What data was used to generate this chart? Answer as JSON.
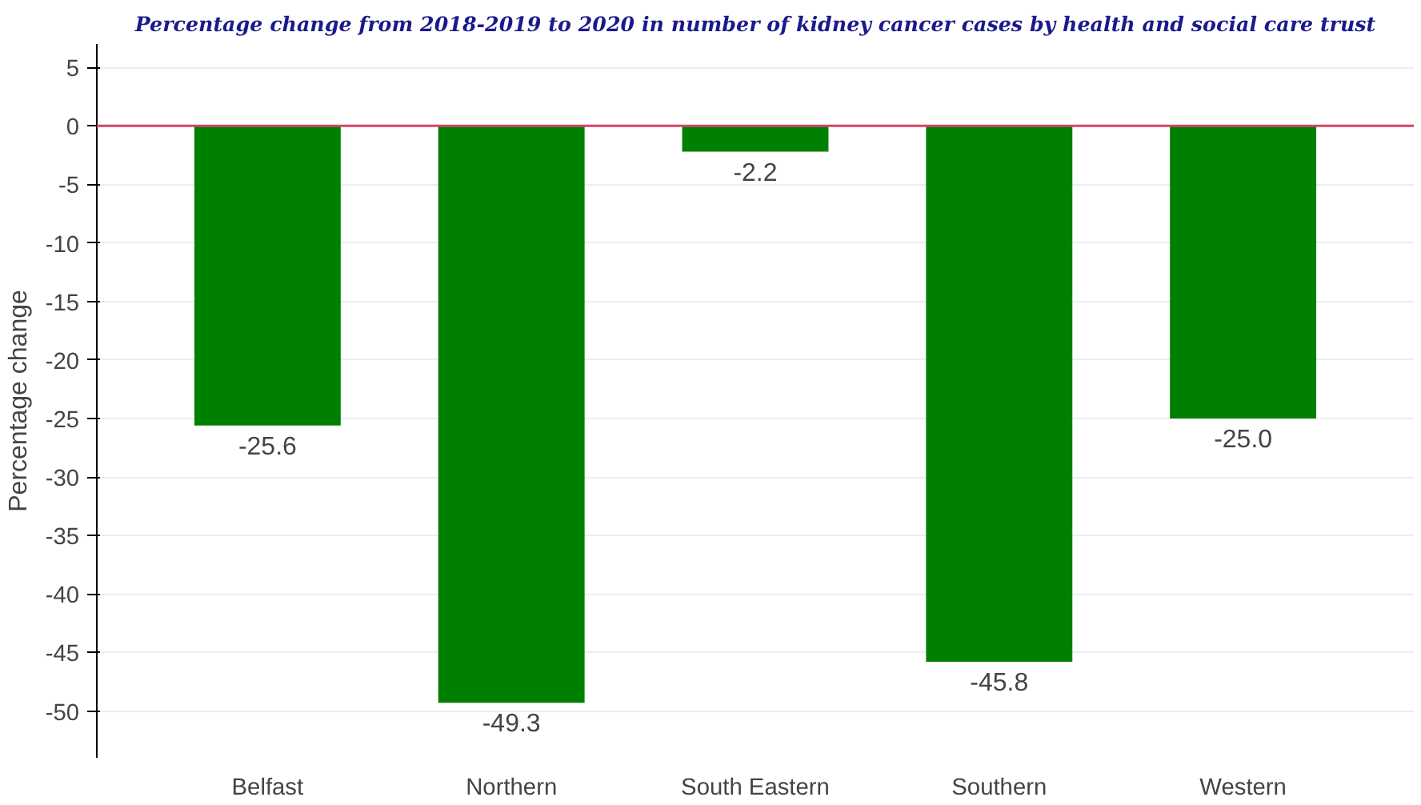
{
  "chart_data": {
    "type": "bar",
    "title": "Percentage change from 2018-2019 to 2020 in number of kidney cancer cases by health and social care trust",
    "ylabel": "Percentage change",
    "categories": [
      "Belfast",
      "Northern",
      "South Eastern",
      "Southern",
      "Western"
    ],
    "values": [
      -25.6,
      -49.3,
      -2.2,
      -45.8,
      -25.0
    ],
    "value_labels": [
      "-25.6",
      "-49.3",
      "-2.2",
      "-45.8",
      "-25.0"
    ],
    "color": "#008000",
    "ylim": [
      -54,
      7
    ],
    "yticks": [
      5,
      0,
      -5,
      -10,
      -15,
      -20,
      -25,
      -30,
      -35,
      -40,
      -45,
      -50
    ],
    "ref_lines": [
      {
        "axis": "y",
        "value": 0,
        "color": "#d6456a"
      }
    ],
    "grid": "y"
  }
}
